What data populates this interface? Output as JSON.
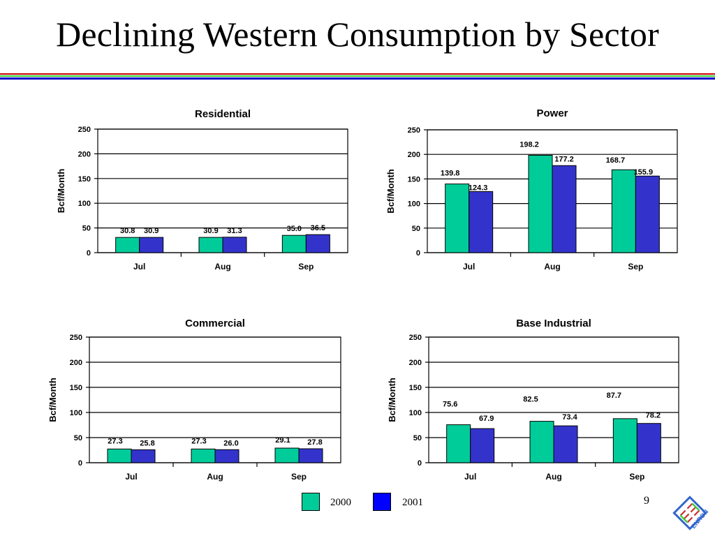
{
  "slide": {
    "title": "Declining Western Consumption by Sector",
    "page_number": "9",
    "logo_text": "ENRON"
  },
  "colors": {
    "series_2000": "#00cc99",
    "series_2001": "#3333cc",
    "legend_2001": "#0000ff",
    "rule_red": "#cc0000",
    "rule_green": "#33cc33",
    "rule_blue": "#0000cc",
    "logo": "#3366cc"
  },
  "legend": {
    "items": [
      {
        "label": "2000",
        "color": "#00cc99"
      },
      {
        "label": "2001",
        "color": "#0000ff"
      }
    ]
  },
  "chart_data": [
    {
      "type": "bar",
      "title": "Residential",
      "ylabel": "Bcf/Month",
      "xlabel": "",
      "categories": [
        "Jul",
        "Aug",
        "Sep"
      ],
      "ylim": [
        0,
        250
      ],
      "yticks": [
        0,
        50,
        100,
        150,
        200,
        250
      ],
      "grid": true,
      "series": [
        {
          "name": "2000",
          "values": [
            30.8,
            30.9,
            35.0
          ],
          "labels": [
            "30.8",
            "30.9",
            "35.0"
          ]
        },
        {
          "name": "2001",
          "values": [
            30.9,
            31.3,
            36.5
          ],
          "labels": [
            "30.9",
            "31.3",
            "36.5"
          ]
        }
      ]
    },
    {
      "type": "bar",
      "title": "Power",
      "ylabel": "Bcf/Month",
      "xlabel": "",
      "categories": [
        "Jul",
        "Aug",
        "Sep"
      ],
      "ylim": [
        0,
        250
      ],
      "yticks": [
        0,
        50,
        100,
        150,
        200,
        250
      ],
      "grid": true,
      "series": [
        {
          "name": "2000",
          "values": [
            139.8,
            198.2,
            168.7
          ],
          "labels": [
            "139.8",
            "198.2",
            "168.7"
          ]
        },
        {
          "name": "2001",
          "values": [
            124.3,
            177.2,
            155.9
          ],
          "labels": [
            "124.3",
            "177.2",
            "155.9"
          ]
        }
      ]
    },
    {
      "type": "bar",
      "title": "Commercial",
      "ylabel": "Bcf/Month",
      "xlabel": "",
      "categories": [
        "Jul",
        "Aug",
        "Sep"
      ],
      "ylim": [
        0,
        250
      ],
      "yticks": [
        0,
        50,
        100,
        150,
        200,
        250
      ],
      "grid": true,
      "series": [
        {
          "name": "2000",
          "values": [
            27.3,
            27.3,
            29.1
          ],
          "labels": [
            "27.3",
            "27.3",
            "29.1"
          ]
        },
        {
          "name": "2001",
          "values": [
            25.8,
            26.0,
            27.8
          ],
          "labels": [
            "25.8",
            "26.0",
            "27.8"
          ]
        }
      ]
    },
    {
      "type": "bar",
      "title": "Base Industrial",
      "ylabel": "Bcf/Month",
      "xlabel": "",
      "categories": [
        "Jul",
        "Aug",
        "Sep"
      ],
      "ylim": [
        0,
        250
      ],
      "yticks": [
        0,
        50,
        100,
        150,
        200,
        250
      ],
      "grid": true,
      "series": [
        {
          "name": "2000",
          "values": [
            75.6,
            82.5,
            87.7
          ],
          "labels": [
            "75.6",
            "82.5",
            "87.7"
          ]
        },
        {
          "name": "2001",
          "values": [
            67.9,
            73.4,
            78.2
          ],
          "labels": [
            "67.9",
            "73.4",
            "78.2"
          ]
        }
      ]
    }
  ]
}
